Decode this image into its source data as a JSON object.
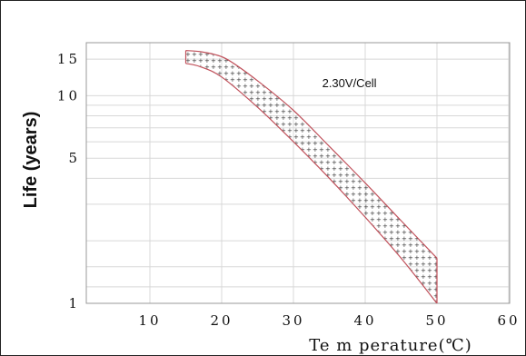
{
  "chart_data": {
    "type": "area",
    "title": "",
    "xlabel": "Te m perature(℃)",
    "ylabel": "Life (years)",
    "xlim": [
      0,
      60
    ],
    "ylim": [
      1,
      18
    ],
    "y_scale": "log",
    "grid": true,
    "x_ticks": [
      {
        "value": 10,
        "label": "10"
      },
      {
        "value": 20,
        "label": "20"
      },
      {
        "value": 30,
        "label": "30"
      },
      {
        "value": 40,
        "label": "40"
      },
      {
        "value": 50,
        "label": "50"
      },
      {
        "value": 60,
        "label": "60"
      }
    ],
    "y_ticks": [
      {
        "value": 1,
        "label": "1"
      },
      {
        "value": 5,
        "label": "5"
      },
      {
        "value": 10,
        "label": "10"
      },
      {
        "value": 15,
        "label": "15"
      }
    ],
    "y_gridlines": [
      1,
      1.2,
      1.5,
      2,
      3,
      4,
      5,
      6,
      7,
      8,
      9,
      10,
      15
    ],
    "annotation": {
      "text": "2.30V/Cell",
      "x": 34,
      "y": 11
    },
    "band": {
      "name": "2.30V/Cell",
      "upper": [
        {
          "x": 15,
          "y": 16.5
        },
        {
          "x": 17,
          "y": 16.3
        },
        {
          "x": 19,
          "y": 15.8
        },
        {
          "x": 21,
          "y": 14.8
        },
        {
          "x": 25,
          "y": 11.8
        },
        {
          "x": 30,
          "y": 8.5
        },
        {
          "x": 35,
          "y": 5.7
        },
        {
          "x": 40,
          "y": 3.8
        },
        {
          "x": 45,
          "y": 2.5
        },
        {
          "x": 50,
          "y": 1.65
        }
      ],
      "lower": [
        {
          "x": 15,
          "y": 14.3
        },
        {
          "x": 17,
          "y": 13.8
        },
        {
          "x": 20,
          "y": 12.3
        },
        {
          "x": 25,
          "y": 8.8
        },
        {
          "x": 30,
          "y": 6.0
        },
        {
          "x": 35,
          "y": 4.0
        },
        {
          "x": 40,
          "y": 2.6
        },
        {
          "x": 45,
          "y": 1.65
        },
        {
          "x": 50,
          "y": 1.0
        }
      ]
    },
    "colors": {
      "curve": "#c0505a",
      "grid": "#d8d8d8",
      "dots": "#333333"
    }
  }
}
